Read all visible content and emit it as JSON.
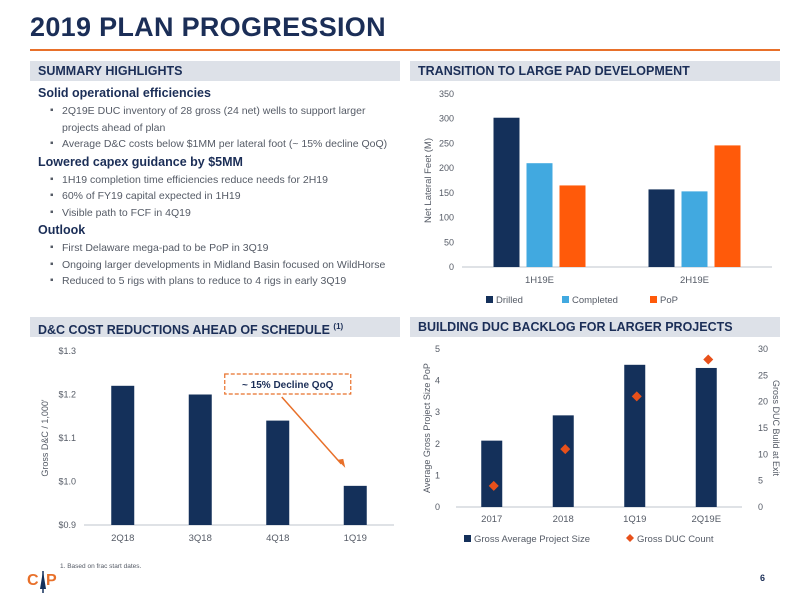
{
  "page": {
    "title": "2019 PLAN PROGRESSION",
    "page_number": "6",
    "footnote": "1. Based on frac start dates.",
    "logo_text": "CAP"
  },
  "summary": {
    "header": "SUMMARY HIGHLIGHTS",
    "sections": [
      {
        "heading": "Solid operational efficiencies",
        "bullets": [
          "2Q19E DUC inventory of 28 gross (24 net) wells to support larger projects ahead of plan",
          "Average D&C costs below $1MM per lateral foot (~ 15% decline QoQ)"
        ]
      },
      {
        "heading": "Lowered capex guidance by $5MM",
        "bullets": [
          "1H19 completion time efficiencies reduce needs for 2H19",
          "60% of FY19 capital expected in 1H19",
          "Visible path to FCF in 4Q19"
        ]
      },
      {
        "heading": "Outlook",
        "bullets": [
          "First Delaware mega-pad to be PoP in 3Q19",
          "Ongoing larger developments in Midland Basin focused on WildHorse",
          "Reduced to 5 rigs with plans to reduce to 4 rigs in early 3Q19"
        ]
      }
    ]
  },
  "headers": {
    "transition": "TRANSITION TO LARGE PAD DEVELOPMENT",
    "dc_cost": "D&C COST REDUCTIONS AHEAD OF SCHEDULE",
    "dc_cost_sup": "(1)",
    "duc": "BUILDING DUC BACKLOG FOR LARGER PROJECTS"
  },
  "colors": {
    "navy": "#14305a",
    "light_blue": "#41a9e0",
    "orange": "#ff5a0a",
    "accent": "#e8702a",
    "diamond": "#e8501a"
  },
  "chart_data": [
    {
      "id": "transition",
      "type": "bar",
      "ylabel": "Net Lateral Feet (M)",
      "ylim": [
        0,
        350
      ],
      "yticks": [
        0,
        50,
        100,
        150,
        200,
        250,
        300,
        350
      ],
      "categories": [
        "1H19E",
        "2H19E"
      ],
      "series": [
        {
          "name": "Drilled",
          "values": [
            302,
            157
          ]
        },
        {
          "name": "Completed",
          "values": [
            210,
            153
          ]
        },
        {
          "name": "PoP",
          "values": [
            165,
            246
          ]
        }
      ],
      "legend": "bottom"
    },
    {
      "id": "dc_cost",
      "type": "bar",
      "ylabel": "Gross D&C / 1,000'",
      "ylim": [
        0.9,
        1.3
      ],
      "yticks": [
        "$0.9",
        "$1.0",
        "$1.1",
        "$1.2",
        "$1.3"
      ],
      "ytick_values": [
        0.9,
        1.0,
        1.1,
        1.2,
        1.3
      ],
      "categories": [
        "2Q18",
        "3Q18",
        "4Q18",
        "1Q19"
      ],
      "values": [
        1.22,
        1.2,
        1.14,
        0.99
      ],
      "annotation": "~ 15% Decline QoQ"
    },
    {
      "id": "duc",
      "type": "bar",
      "ylabel": "Average Gross Project Size PoP",
      "y2label": "Gross DUC Build at Exit",
      "ylim": [
        0,
        5
      ],
      "yticks": [
        0,
        1,
        2,
        3,
        4,
        5
      ],
      "y2lim": [
        0,
        30
      ],
      "y2ticks": [
        0,
        5,
        10,
        15,
        20,
        25,
        30
      ],
      "categories": [
        "2017",
        "2018",
        "1Q19",
        "2Q19E"
      ],
      "series": [
        {
          "name": "Gross Average Project Size",
          "values": [
            2.1,
            2.9,
            4.5,
            4.4
          ],
          "axis": "left"
        },
        {
          "name": "Gross DUC Count",
          "values": [
            4,
            11,
            21,
            28
          ],
          "axis": "right"
        }
      ],
      "legend": "bottom"
    }
  ]
}
